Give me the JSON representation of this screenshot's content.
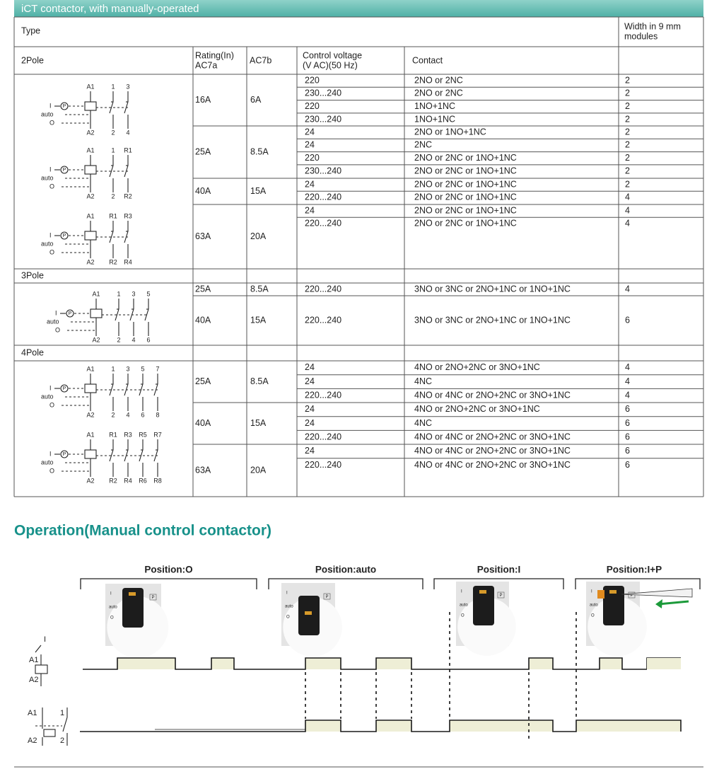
{
  "header": {
    "title": "iCT contactor, with manually-operated"
  },
  "table": {
    "type_label": "Type",
    "width_label": [
      "Width in 9 mm",
      "modules"
    ],
    "columns": [
      [
        "Rating(In)",
        "AC7a"
      ],
      [
        "AC7b"
      ],
      [
        "Control voltage",
        "(V AC)(50 Hz)"
      ],
      [
        "Contact"
      ]
    ],
    "sections": [
      {
        "name": "2Pole",
        "symbols": [
          {
            "top": [
              "A1",
              "1",
              "3"
            ],
            "bottom": [
              "A2",
              "2",
              "4"
            ],
            "modes": [
              "I",
              "auto",
              "O"
            ],
            "button": "P"
          },
          {
            "top": [
              "A1",
              "1",
              "R1"
            ],
            "bottom": [
              "A2",
              "2",
              "R2"
            ],
            "modes": [
              "I",
              "auto",
              "O"
            ],
            "button": "P"
          },
          {
            "top": [
              "A1",
              "R1",
              "R3"
            ],
            "bottom": [
              "A2",
              "R2",
              "R4"
            ],
            "modes": [
              "I",
              "auto",
              "O"
            ],
            "button": "P"
          }
        ],
        "groups": [
          {
            "rating": "16A",
            "ac7b": "6A",
            "rows": [
              [
                "220",
                "2NO or 2NC",
                "2"
              ],
              [
                "230...240",
                "2NO or 2NC",
                "2"
              ],
              [
                "220",
                "1NO+1NC",
                "2"
              ],
              [
                "230...240",
                "1NO+1NC",
                "2"
              ]
            ]
          },
          {
            "rating": "25A",
            "ac7b": "8.5A",
            "rows": [
              [
                "24",
                "2NO or 1NO+1NC",
                "2"
              ],
              [
                "24",
                "2NC",
                "2"
              ],
              [
                "220",
                "2NO or 2NC or 1NO+1NC",
                "2"
              ],
              [
                "230...240",
                "2NO or 2NC or 1NO+1NC",
                "2"
              ]
            ]
          },
          {
            "rating": "40A",
            "ac7b": "15A",
            "rows": [
              [
                "24",
                "2NO or 2NC or 1NO+1NC",
                "2"
              ],
              [
                "220...240",
                "2NO or 2NC or 1NO+1NC",
                "4"
              ]
            ]
          },
          {
            "rating": "63A",
            "ac7b": "20A",
            "rows": [
              [
                "24",
                "2NO or 2NC or 1NO+1NC",
                "4"
              ],
              [
                "220...240",
                "2NO or 2NC or 1NO+1NC",
                "4"
              ]
            ]
          }
        ]
      },
      {
        "name": "3Pole",
        "symbols": [
          {
            "top": [
              "A1",
              "1",
              "3",
              "5"
            ],
            "bottom": [
              "A2",
              "2",
              "4",
              "6"
            ],
            "modes": [
              "I",
              "auto",
              "O"
            ],
            "button": "P"
          }
        ],
        "groups": [
          {
            "rating": "25A",
            "ac7b": "8.5A",
            "rows": [
              [
                "220...240",
                "3NO or 3NC or 2NO+1NC or 1NO+1NC",
                "4"
              ]
            ]
          },
          {
            "rating": "40A",
            "ac7b": "15A",
            "rows": [
              [
                "220...240",
                "3NO or 3NC or 2NO+1NC or 1NO+1NC",
                "6"
              ]
            ]
          }
        ]
      },
      {
        "name": "4Pole",
        "symbols": [
          {
            "top": [
              "A1",
              "1",
              "3",
              "5",
              "7"
            ],
            "bottom": [
              "A2",
              "2",
              "4",
              "6",
              "8"
            ],
            "modes": [
              "I",
              "auto",
              "O"
            ],
            "button": "P"
          },
          {
            "top": [
              "A1",
              "R1",
              "R3",
              "R5",
              "R7"
            ],
            "bottom": [
              "A2",
              "R2",
              "R4",
              "R6",
              "R8"
            ],
            "modes": [
              "I",
              "auto",
              "O"
            ],
            "button": "P"
          }
        ],
        "groups": [
          {
            "rating": "25A",
            "ac7b": "8.5A",
            "rows": [
              [
                "24",
                "4NO or 2NO+2NC or 3NO+1NC",
                "4"
              ],
              [
                "24",
                "4NC",
                "4"
              ],
              [
                "220...240",
                "4NO or 4NC or 2NO+2NC or 3NO+1NC",
                "4"
              ]
            ]
          },
          {
            "rating": "40A",
            "ac7b": "15A",
            "rows": [
              [
                "24",
                "4NO or 2NO+2NC or 3NO+1NC",
                "6"
              ],
              [
                "24",
                "4NC",
                "6"
              ],
              [
                "220...240",
                "4NO or 4NC or 2NO+2NC or 3NO+1NC",
                "6"
              ]
            ]
          },
          {
            "rating": "63A",
            "ac7b": "20A",
            "rows": [
              [
                "24",
                "4NO or 4NC or 2NO+2NC or 3NO+1NC",
                "6"
              ],
              [
                "220...240",
                "4NO or 4NC or 2NO+2NC or 3NO+1NC",
                "6"
              ]
            ]
          }
        ]
      }
    ]
  },
  "operation": {
    "title": "Operation(Manual control contactor)",
    "positions": [
      "Position:O",
      "Position:auto",
      "Position:I",
      "Position:I+P"
    ],
    "dial_labels": [
      "I",
      "auto",
      "O",
      "P"
    ],
    "coil_labels": [
      "I",
      "A1",
      "A2"
    ],
    "contact_labels": [
      "A1",
      "1",
      "A2",
      "2"
    ]
  }
}
